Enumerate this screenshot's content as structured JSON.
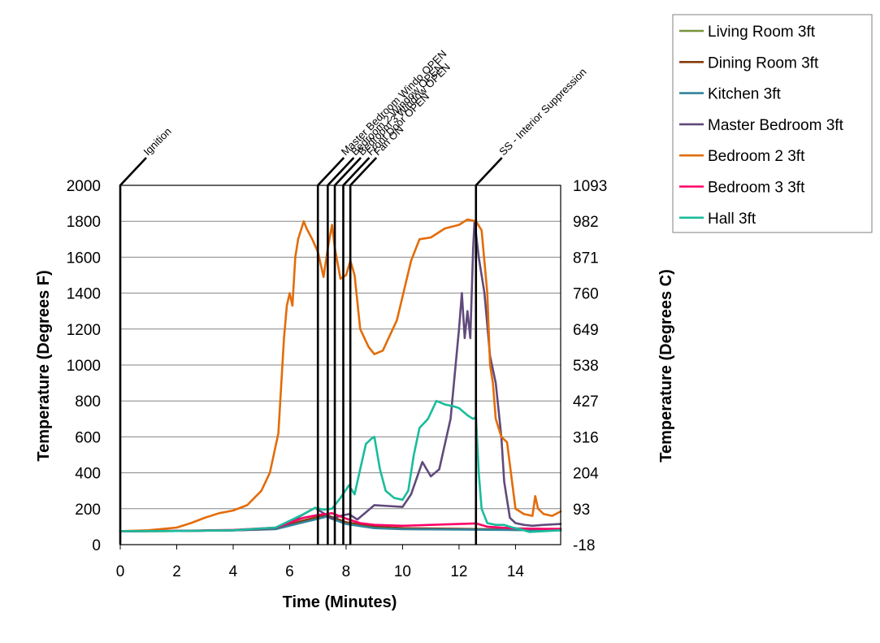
{
  "chart_data": {
    "type": "line",
    "title": "",
    "xlabel": "Time (Minutes)",
    "ylabel": "Temperature (Degrees F)",
    "y2label": "Temperature (Degrees C)",
    "xlim": [
      0,
      15.6
    ],
    "ylim": [
      0,
      2000
    ],
    "xticks": [
      0,
      2,
      4,
      6,
      8,
      10,
      12,
      14
    ],
    "yticks": [
      0,
      200,
      400,
      600,
      800,
      1000,
      1200,
      1400,
      1600,
      1800,
      2000
    ],
    "y2ticks": [
      "-18",
      "93",
      "204",
      "316",
      "427",
      "538",
      "649",
      "760",
      "871",
      "982",
      "1093"
    ],
    "grid": "horizontal",
    "legend_position": "top-right",
    "events": [
      {
        "time": 0,
        "label": "Ignition"
      },
      {
        "time": 7.0,
        "label": "Master Bedroom Windo OPEN"
      },
      {
        "time": 7.35,
        "label": "Bedroom 2 Window OPEN"
      },
      {
        "time": 7.6,
        "label": "Bedroom 3 Window OPEN"
      },
      {
        "time": 7.9,
        "label": "Front Door OPEN"
      },
      {
        "time": 8.15,
        "label": "Fan ON"
      },
      {
        "time": 12.6,
        "label": "SS - Interior Suppression"
      }
    ],
    "series": [
      {
        "name": "Living Room 3ft",
        "color": "#77933C",
        "x": [
          0,
          2,
          4,
          5.5,
          6.5,
          7.3,
          8,
          9,
          10,
          12,
          13,
          14,
          15.6
        ],
        "y": [
          75,
          76,
          80,
          88,
          130,
          160,
          120,
          95,
          88,
          85,
          85,
          82,
          80
        ]
      },
      {
        "name": "Dining Room 3ft",
        "color": "#843C0C",
        "x": [
          0,
          2,
          4,
          5.5,
          6.5,
          7.3,
          8,
          9,
          10,
          12,
          13,
          14,
          15.6
        ],
        "y": [
          75,
          76,
          80,
          90,
          135,
          165,
          125,
          100,
          92,
          88,
          86,
          84,
          82
        ]
      },
      {
        "name": "Kitchen 3ft",
        "color": "#31849B",
        "x": [
          0,
          2,
          4,
          5.5,
          6.5,
          7.3,
          8,
          9,
          10,
          12,
          13,
          14,
          15.6
        ],
        "y": [
          75,
          76,
          79,
          86,
          125,
          155,
          115,
          92,
          86,
          84,
          83,
          82,
          80
        ]
      },
      {
        "name": "Master Bedroom 3ft",
        "color": "#604A7B",
        "x": [
          0,
          2,
          4,
          5,
          5.5,
          6,
          6.5,
          6.9,
          7.2,
          7.5,
          7.8,
          8.1,
          8.4,
          8.7,
          9.0,
          9.5,
          10.0,
          10.3,
          10.7,
          11.0,
          11.3,
          11.7,
          12.0,
          12.1,
          12.2,
          12.3,
          12.4,
          12.5,
          12.55,
          12.7,
          12.9,
          13.1,
          13.3,
          13.5,
          13.6,
          13.8,
          14.0,
          14.3,
          14.6,
          15.0,
          15.6
        ],
        "y": [
          75,
          76,
          80,
          85,
          92,
          120,
          170,
          205,
          175,
          145,
          160,
          170,
          140,
          180,
          220,
          215,
          210,
          280,
          460,
          380,
          420,
          700,
          1200,
          1400,
          1150,
          1300,
          1150,
          1650,
          1800,
          1600,
          1400,
          1050,
          900,
          600,
          350,
          150,
          120,
          110,
          105,
          110,
          115
        ]
      },
      {
        "name": "Bedroom 2 3ft",
        "color": "#E36C09",
        "x": [
          0,
          1,
          2,
          2.5,
          3,
          3.5,
          4,
          4.5,
          5,
          5.3,
          5.6,
          5.8,
          5.9,
          6.0,
          6.1,
          6.2,
          6.3,
          6.5,
          6.6,
          6.8,
          7.0,
          7.2,
          7.35,
          7.5,
          7.6,
          7.8,
          8.0,
          8.15,
          8.3,
          8.5,
          8.8,
          9.0,
          9.3,
          9.8,
          10.3,
          10.6,
          11.0,
          11.5,
          12.0,
          12.3,
          12.6,
          12.8,
          13.0,
          13.1,
          13.2,
          13.3,
          13.5,
          13.7,
          14.0,
          14.3,
          14.6,
          14.7,
          14.8,
          15.0,
          15.3,
          15.6
        ],
        "y": [
          75,
          80,
          95,
          120,
          150,
          175,
          190,
          220,
          300,
          400,
          620,
          1150,
          1330,
          1400,
          1330,
          1600,
          1700,
          1800,
          1760,
          1700,
          1630,
          1490,
          1650,
          1780,
          1650,
          1480,
          1500,
          1580,
          1500,
          1200,
          1100,
          1060,
          1080,
          1250,
          1580,
          1700,
          1710,
          1760,
          1780,
          1810,
          1800,
          1750,
          1400,
          1000,
          900,
          700,
          600,
          570,
          200,
          170,
          160,
          270,
          200,
          170,
          160,
          185
        ]
      },
      {
        "name": "Bedroom 3 3ft",
        "color": "#FF0066",
        "x": [
          0,
          2,
          4,
          5.5,
          6.5,
          7.0,
          7.5,
          8.0,
          8.5,
          9.0,
          10.0,
          11.0,
          12.0,
          12.6,
          13.0,
          14.0,
          15.0,
          15.6
        ],
        "y": [
          75,
          77,
          82,
          95,
          150,
          165,
          175,
          145,
          120,
          110,
          105,
          110,
          115,
          118,
          100,
          90,
          88,
          88
        ]
      },
      {
        "name": "Hall 3ft",
        "color": "#1ABC9C",
        "x": [
          0,
          2,
          4,
          5.5,
          6.5,
          6.9,
          7.2,
          7.5,
          7.8,
          8.1,
          8.3,
          8.5,
          8.7,
          8.9,
          9.0,
          9.2,
          9.4,
          9.7,
          10.0,
          10.2,
          10.4,
          10.6,
          10.9,
          11.2,
          11.5,
          11.8,
          12.0,
          12.3,
          12.5,
          12.6,
          12.7,
          12.8,
          13.0,
          13.3,
          13.6,
          13.9,
          14.2,
          14.5,
          15.0,
          15.6
        ],
        "y": [
          75,
          76,
          80,
          95,
          170,
          205,
          195,
          200,
          260,
          330,
          280,
          420,
          560,
          590,
          600,
          420,
          300,
          260,
          250,
          300,
          500,
          650,
          700,
          800,
          780,
          770,
          760,
          720,
          700,
          710,
          400,
          200,
          120,
          110,
          110,
          95,
          85,
          70,
          75,
          80
        ]
      }
    ]
  }
}
